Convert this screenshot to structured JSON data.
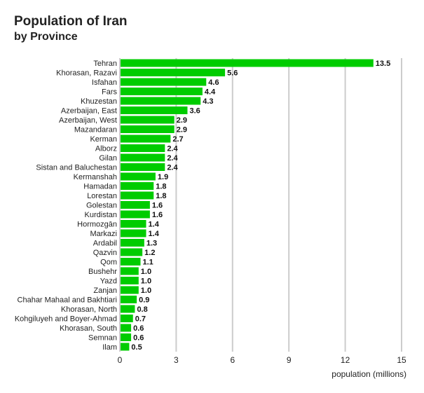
{
  "chart_data": {
    "type": "bar",
    "orientation": "horizontal",
    "title": "Population of Iran",
    "subtitle": "by Province",
    "xlabel": "population (millions)",
    "ylabel": "",
    "xlim": [
      0,
      15
    ],
    "xticks": [
      0,
      3,
      6,
      9,
      12,
      15
    ],
    "grid": true,
    "bar_color": "#00cc00",
    "categories": [
      "Tehran",
      "Khorasan, Razavi",
      "Isfahan",
      "Fars",
      "Khuzestan",
      "Azerbaijan, East",
      "Azerbaijan, West",
      "Mazandaran",
      "Kerman",
      "Alborz",
      "Gilan",
      "Sistan and Baluchestan",
      "Kermanshah",
      "Hamadan",
      "Lorestan",
      "Golestan",
      "Kurdistan",
      "Hormozgān",
      "Markazi",
      "Ardabil",
      "Qazvin",
      "Qom",
      "Bushehr",
      "Yazd",
      "Zanjan",
      "Chahar Mahaal and Bakhtiari",
      "Khorasan, North",
      "Kohgiluyeh and Boyer-Ahmad",
      "Khorasan, South",
      "Semnan",
      "Ilam"
    ],
    "values": [
      13.5,
      5.6,
      4.6,
      4.4,
      4.3,
      3.6,
      2.9,
      2.9,
      2.7,
      2.4,
      2.4,
      2.4,
      1.9,
      1.8,
      1.8,
      1.6,
      1.6,
      1.4,
      1.4,
      1.3,
      1.2,
      1.1,
      1.0,
      1.0,
      1.0,
      0.9,
      0.8,
      0.7,
      0.6,
      0.6,
      0.5
    ],
    "data_labels": [
      "13.5",
      "5.6",
      "4.6",
      "4.4",
      "4.3",
      "3.6",
      "2.9",
      "2.9",
      "2.7",
      "2.4",
      "2.4",
      "2.4",
      "1.9",
      "1.8",
      "1.8",
      "1.6",
      "1.6",
      "1.4",
      "1.4",
      "1.3",
      "1.2",
      "1.1",
      "1.0",
      "1.0",
      "1.0",
      "0.9",
      "0.8",
      "0.7",
      "0.6",
      "0.6",
      "0.5"
    ]
  }
}
